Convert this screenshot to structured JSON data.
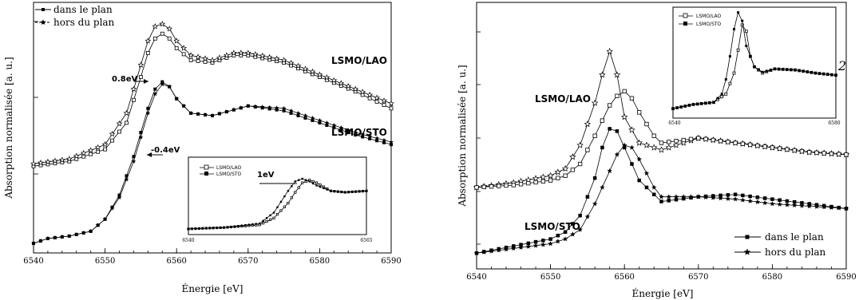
{
  "chart_data": [
    {
      "type": "line",
      "x_range": [
        6540,
        6590
      ],
      "y_range": [
        0,
        1
      ],
      "xlabel": "Énergie [eV]",
      "ylabel": "Absorption normalisée [a. u.]",
      "xticks": [
        "6540",
        "6550",
        "6560",
        "6570",
        "6580",
        "6590"
      ],
      "legend": [
        "dans le plan",
        "hors du plan"
      ],
      "legend_position": "top-left",
      "labels": [
        "LSMO/LAO",
        "LSMO/STO"
      ],
      "annotations": [
        "0.8eV",
        "-0.4eV"
      ],
      "series": [
        {
          "name": "dans le plan",
          "group": "LSMO/LAO",
          "x": [
            6540,
            6545,
            6550,
            6553,
            6555,
            6556,
            6557,
            6558,
            6559,
            6560,
            6562,
            6565,
            6568,
            6570,
            6575,
            6580,
            6585,
            6590
          ],
          "y": [
            0.34,
            0.36,
            0.41,
            0.52,
            0.71,
            0.81,
            0.87,
            0.89,
            0.87,
            0.83,
            0.78,
            0.77,
            0.8,
            0.8,
            0.77,
            0.71,
            0.65,
            0.58
          ]
        },
        {
          "name": "hors du plan",
          "group": "LSMO/LAO",
          "x": [
            6540,
            6545,
            6550,
            6553,
            6555,
            6556,
            6557,
            6558,
            6559,
            6560,
            6562,
            6565,
            6568,
            6570,
            6575,
            6580,
            6585,
            6590
          ],
          "y": [
            0.35,
            0.37,
            0.43,
            0.56,
            0.76,
            0.86,
            0.92,
            0.93,
            0.91,
            0.86,
            0.8,
            0.78,
            0.81,
            0.81,
            0.78,
            0.72,
            0.66,
            0.6
          ]
        },
        {
          "name": "dans le plan",
          "group": "LSMO/STO",
          "x": [
            6540,
            6542,
            6545,
            6548,
            6550,
            6552,
            6554,
            6555,
            6556,
            6557,
            6558,
            6559,
            6560,
            6562,
            6565,
            6570,
            6575,
            6580,
            6585,
            6590
          ],
          "y": [
            0.02,
            0.04,
            0.05,
            0.07,
            0.12,
            0.22,
            0.38,
            0.48,
            0.58,
            0.66,
            0.69,
            0.67,
            0.62,
            0.56,
            0.55,
            0.59,
            0.57,
            0.52,
            0.47,
            0.43
          ]
        },
        {
          "name": "hors du plan",
          "group": "LSMO/STO",
          "x": [
            6540,
            6542,
            6545,
            6548,
            6550,
            6552,
            6554,
            6555,
            6556,
            6557,
            6558,
            6559,
            6560,
            6562,
            6565,
            6570,
            6575,
            6580,
            6585,
            6590
          ],
          "y": [
            0.02,
            0.04,
            0.05,
            0.07,
            0.12,
            0.21,
            0.36,
            0.46,
            0.56,
            0.64,
            0.68,
            0.67,
            0.62,
            0.56,
            0.55,
            0.59,
            0.58,
            0.53,
            0.48,
            0.44
          ]
        }
      ],
      "inset": {
        "x_range": [
          6540,
          6565
        ],
        "xticks": [
          "6540",
          "6565"
        ],
        "legend": [
          "LSMO/LAO",
          "LSMO/STO"
        ],
        "annotation": "1eV",
        "series": [
          {
            "name": "LSMO/LAO",
            "x": [
              6540,
              6545,
              6550,
              6552,
              6554,
              6555,
              6556,
              6557,
              6558,
              6560,
              6562,
              6565
            ],
            "y": [
              0.06,
              0.08,
              0.12,
              0.22,
              0.44,
              0.6,
              0.74,
              0.78,
              0.74,
              0.62,
              0.6,
              0.62
            ]
          },
          {
            "name": "LSMO/STO",
            "x": [
              6540,
              6545,
              6550,
              6552,
              6553,
              6554,
              6555,
              6556,
              6557,
              6558,
              6560,
              6562,
              6565
            ],
            "y": [
              0.06,
              0.08,
              0.14,
              0.3,
              0.46,
              0.62,
              0.76,
              0.8,
              0.76,
              0.7,
              0.62,
              0.6,
              0.62
            ]
          }
        ]
      }
    },
    {
      "type": "line",
      "x_range": [
        6540,
        6590
      ],
      "y_range": [
        0,
        1
      ],
      "xlabel": "Énergie [eV]",
      "ylabel": "Absorption normalisée [a. u.]",
      "xticks": [
        "6540",
        "6550",
        "6560",
        "6570",
        "6580",
        "6590"
      ],
      "legend": [
        "dans le plan",
        "hors du plan"
      ],
      "legend_position": "bottom-right",
      "labels": [
        "LSMO/LAO",
        "LSMO/STO"
      ],
      "series": [
        {
          "name": "hors du plan",
          "group": "LSMO/LAO",
          "x": [
            6540,
            6545,
            6550,
            6552,
            6554,
            6556,
            6557,
            6558,
            6559,
            6560,
            6562,
            6565,
            6570,
            6575,
            6580,
            6585,
            6590
          ],
          "y": [
            0.32,
            0.34,
            0.37,
            0.4,
            0.5,
            0.68,
            0.8,
            0.9,
            0.8,
            0.62,
            0.51,
            0.48,
            0.53,
            0.51,
            0.49,
            0.47,
            0.46
          ]
        },
        {
          "name": "dans le plan",
          "group": "LSMO/LAO",
          "x": [
            6540,
            6545,
            6550,
            6552,
            6554,
            6556,
            6558,
            6559,
            6560,
            6561,
            6562,
            6564,
            6565,
            6570,
            6575,
            6580,
            6585,
            6590
          ],
          "y": [
            0.32,
            0.33,
            0.35,
            0.37,
            0.42,
            0.54,
            0.67,
            0.71,
            0.73,
            0.7,
            0.64,
            0.54,
            0.51,
            0.53,
            0.51,
            0.49,
            0.47,
            0.46
          ]
        },
        {
          "name": "dans le plan",
          "group": "LSMO/STO",
          "x": [
            6540,
            6545,
            6550,
            6552,
            6554,
            6556,
            6557,
            6558,
            6559,
            6560,
            6562,
            6565,
            6570,
            6575,
            6580,
            6585,
            6590
          ],
          "y": [
            0.04,
            0.07,
            0.1,
            0.13,
            0.2,
            0.36,
            0.49,
            0.57,
            0.56,
            0.49,
            0.35,
            0.26,
            0.28,
            0.29,
            0.27,
            0.25,
            0.23
          ]
        },
        {
          "name": "hors du plan",
          "group": "LSMO/STO",
          "x": [
            6540,
            6545,
            6550,
            6552,
            6554,
            6556,
            6558,
            6559,
            6560,
            6561,
            6562,
            6564,
            6565,
            6570,
            6575,
            6580,
            6585,
            6590
          ],
          "y": [
            0.04,
            0.06,
            0.08,
            0.1,
            0.14,
            0.25,
            0.39,
            0.46,
            0.5,
            0.49,
            0.44,
            0.32,
            0.28,
            0.28,
            0.27,
            0.25,
            0.24,
            0.23
          ]
        }
      ],
      "inset": {
        "x_range": [
          6540,
          6580
        ],
        "xticks": [
          "6540",
          "6580"
        ],
        "legend": [
          "LSMO/LAO",
          "LSMO/STO"
        ],
        "annotation": "2",
        "series": [
          {
            "name": "LSMO/LAO",
            "x": [
              6540,
              6545,
              6550,
              6553,
              6555,
              6556,
              6557,
              6558,
              6559,
              6560,
              6562,
              6565,
              6570,
              6575,
              6580
            ],
            "y": [
              0.06,
              0.1,
              0.12,
              0.2,
              0.4,
              0.62,
              0.86,
              0.8,
              0.56,
              0.46,
              0.4,
              0.44,
              0.43,
              0.4,
              0.38
            ]
          },
          {
            "name": "LSMO/STO",
            "x": [
              6540,
              6545,
              6550,
              6552,
              6553,
              6554,
              6555,
              6556,
              6557,
              6558,
              6560,
              6562,
              6565,
              6570,
              6575,
              6580
            ],
            "y": [
              0.06,
              0.1,
              0.12,
              0.2,
              0.34,
              0.56,
              0.82,
              0.98,
              0.9,
              0.66,
              0.46,
              0.41,
              0.44,
              0.43,
              0.4,
              0.38
            ]
          }
        ]
      }
    }
  ]
}
